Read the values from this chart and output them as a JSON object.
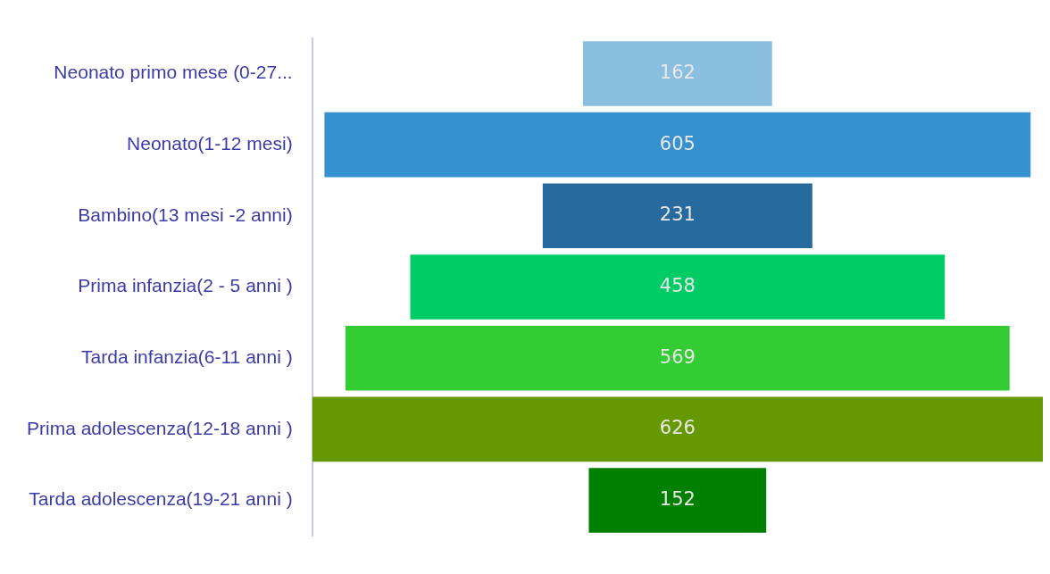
{
  "chart_data": {
    "type": "other",
    "categories": [
      "Neonato primo mese (0-27...",
      "Neonato(1-12 mesi)",
      "Bambino(13 mesi -2 anni)",
      "Prima infanzia(2 - 5 anni )",
      "Tarda infanzia(6-11 anni )",
      "Prima adolescenza(12-18 anni )",
      "Tarda adolescenza(19-21 anni )"
    ],
    "values": [
      162,
      605,
      231,
      458,
      569,
      626,
      152
    ],
    "colors": [
      "#8bbfe0",
      "#3591d0",
      "#276a9e",
      "#00cc66",
      "#33cc33",
      "#669900",
      "#008000"
    ],
    "data_labels": true
  }
}
